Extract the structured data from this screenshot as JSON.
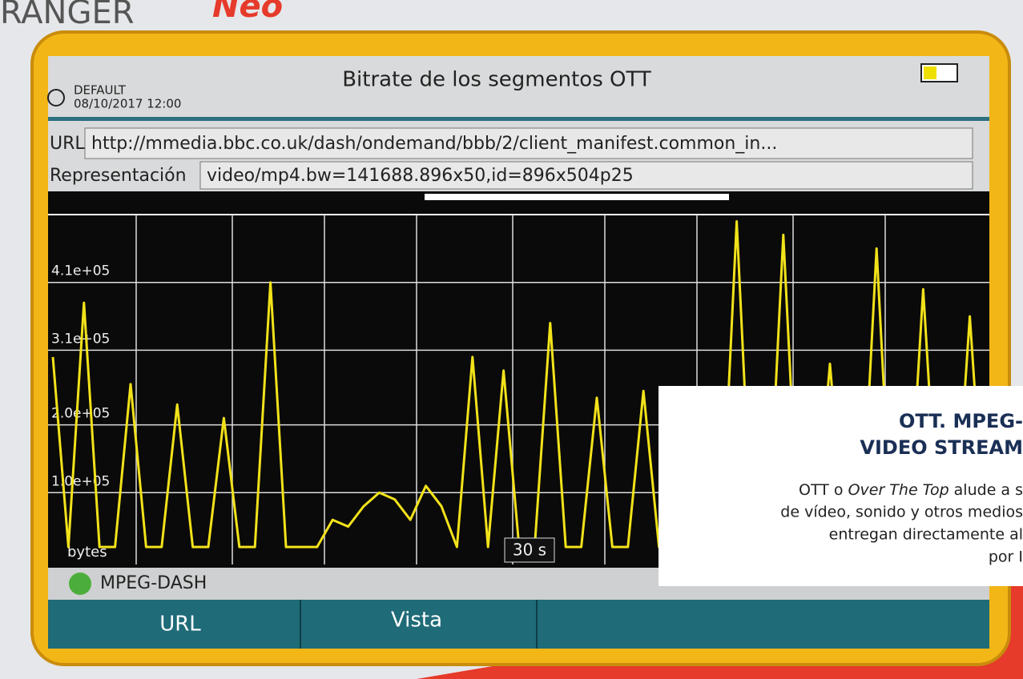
{
  "brand": {
    "name": "RANGER",
    "model": "Neo"
  },
  "screen": {
    "title": "Bitrate de los segmentos OTT",
    "profile": "DEFAULT",
    "datetime": "08/10/2017 12:00",
    "url_label": "URL",
    "url": "http://mmedia.bbc.co.uk/dash/ondemand/bbb/2/client_manifest.common_in...",
    "rep_label": "Representación",
    "representation": "video/mp4.bw=141688.896x50,id=896x504p25",
    "status": "MPEG-DASH",
    "buttons": [
      "URL",
      "Vista"
    ]
  },
  "chart_data": {
    "type": "line",
    "ylabel": "bytes",
    "xlabel": "30 s",
    "ylim": [
      0,
      510000
    ],
    "yticks": [
      {
        "value": 100000,
        "label": "1.0e+05"
      },
      {
        "value": 200000,
        "label": "2.0e+05"
      },
      {
        "value": 310000,
        "label": "3.1e+05"
      },
      {
        "value": 410000,
        "label": "4.1e+05"
      }
    ],
    "grid": true,
    "series": [
      {
        "color": "#f2e21a",
        "values": [
          300000,
          20000,
          380000,
          20000,
          20000,
          260000,
          20000,
          20000,
          230000,
          20000,
          20000,
          210000,
          20000,
          20000,
          410000,
          20000,
          20000,
          20000,
          60000,
          50000,
          80000,
          100000,
          90000,
          60000,
          110000,
          80000,
          20000,
          300000,
          20000,
          280000,
          20000,
          20000,
          350000,
          20000,
          20000,
          240000,
          20000,
          20000,
          250000,
          20000,
          20000,
          220000,
          20000,
          20000,
          500000,
          20000,
          20000,
          480000,
          20000,
          20000,
          290000,
          20000,
          20000,
          460000,
          20000,
          20000,
          400000,
          20000,
          20000,
          360000,
          20000
        ]
      }
    ]
  },
  "overlay": {
    "title_lines": [
      "OTT. MPEG-",
      "VIDEO STREAM"
    ],
    "first_line": {
      "before": "OTT o ",
      "italic": "Over The Top",
      "after": " alude a s"
    },
    "lines": [
      "de vídeo, sonido y otros medios",
      "entregan directamente al",
      "por I"
    ]
  }
}
